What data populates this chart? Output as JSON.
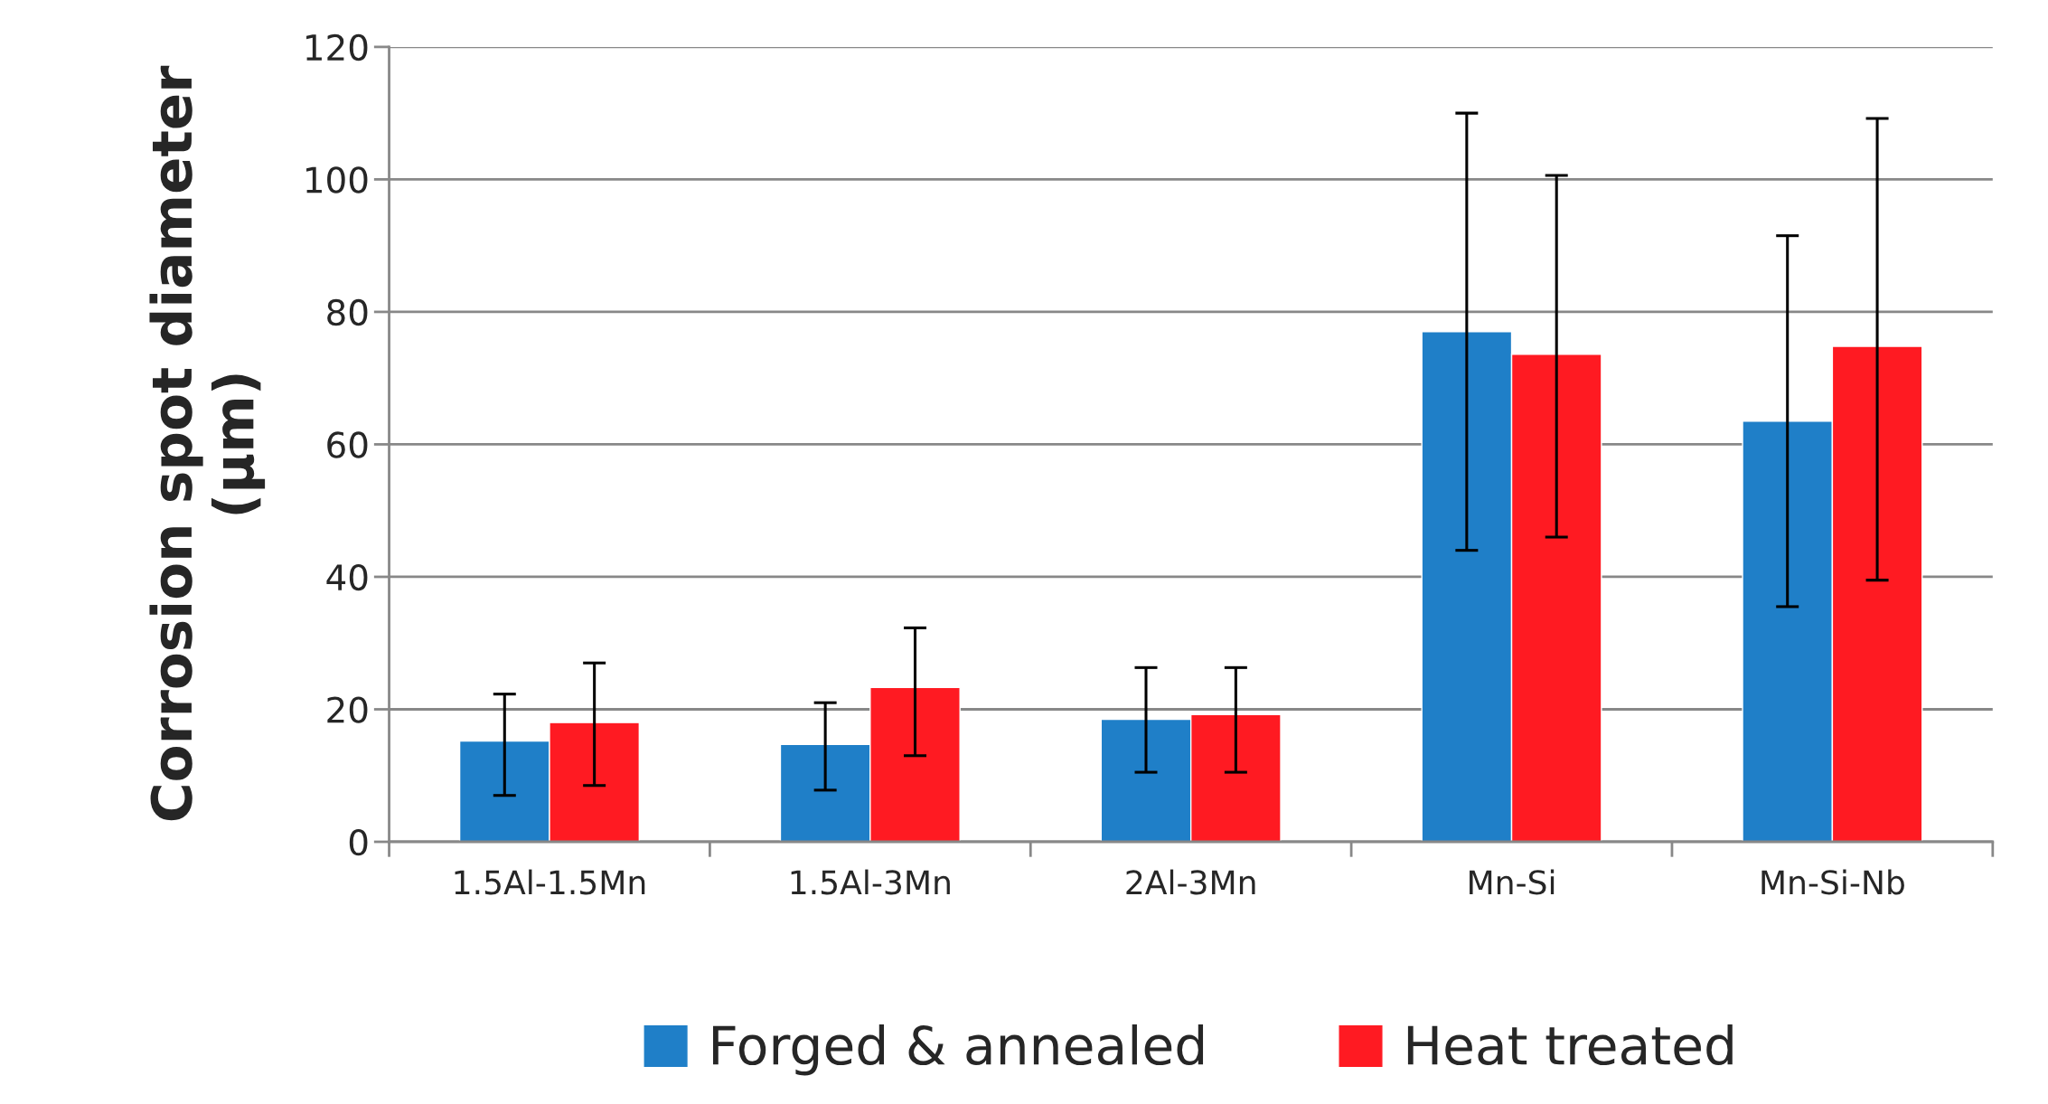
{
  "chart_data": {
    "type": "bar",
    "ylabel": "Corrosion spot diameter\n(µm)",
    "categories": [
      "1.5Al-1.5Mn",
      "1.5Al-3Mn",
      "2Al-3Mn",
      "Mn-Si",
      "Mn-Si-Nb"
    ],
    "series": [
      {
        "name": "Forged & annealed",
        "color": "#1f7fc8",
        "values": [
          15.2,
          14.7,
          18.5,
          77,
          63.5
        ],
        "errors": [
          [
            7,
            22.3
          ],
          [
            7.8,
            21
          ],
          [
            10.5,
            26.3
          ],
          [
            44,
            110
          ],
          [
            35.5,
            91.5
          ]
        ]
      },
      {
        "name": "Heat treated",
        "color": "#ff1a22",
        "values": [
          18,
          23.3,
          19.2,
          73.6,
          74.8
        ],
        "errors": [
          [
            8.5,
            27
          ],
          [
            13,
            32.3
          ],
          [
            10.5,
            26.3
          ],
          [
            46,
            100.6
          ],
          [
            39.5,
            109.2
          ]
        ]
      }
    ],
    "ylim": [
      0,
      120
    ],
    "yticks": [
      0,
      20,
      40,
      60,
      80,
      100,
      120
    ],
    "grid": "y",
    "legend": "bottom"
  }
}
